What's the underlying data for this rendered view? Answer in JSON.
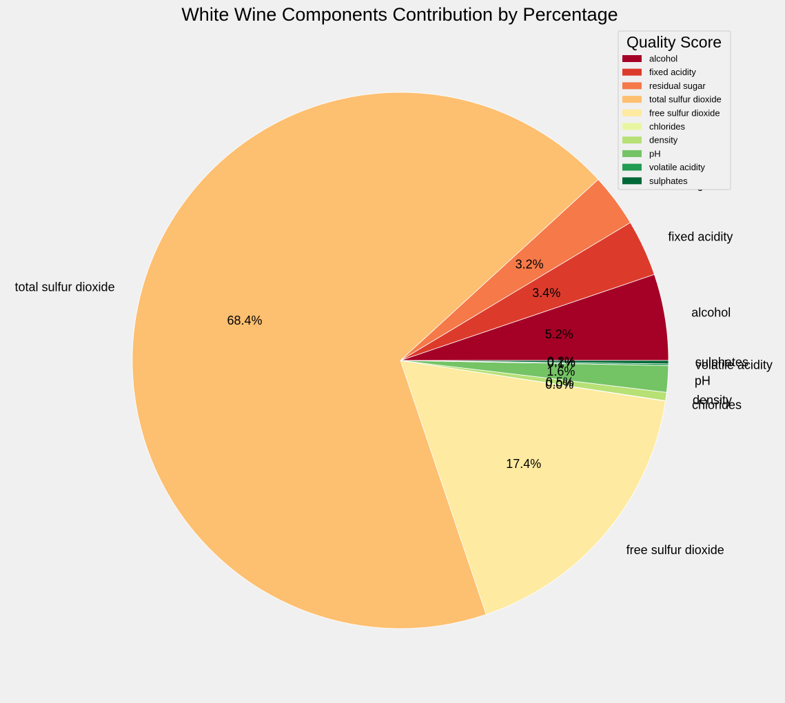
{
  "chart_data": {
    "type": "pie",
    "title": "White Wine Components Contribution by Percentage",
    "legend_title": "Quality Score",
    "legend_position": "top-right",
    "start_angle_deg": 0,
    "direction": "counterclockwise",
    "slices": [
      {
        "label": "alcohol",
        "value": 5.2,
        "pct_label": "5.2%",
        "color": "#a50026"
      },
      {
        "label": "fixed acidity",
        "value": 3.4,
        "pct_label": "3.4%",
        "color": "#dc3b2c"
      },
      {
        "label": "residual sugar",
        "value": 3.2,
        "pct_label": "3.2%",
        "color": "#f57949"
      },
      {
        "label": "total sulfur dioxide",
        "value": 68.4,
        "pct_label": "68.4%",
        "color": "#fdbf70"
      },
      {
        "label": "free sulfur dioxide",
        "value": 17.4,
        "pct_label": "17.4%",
        "color": "#feeaa0"
      },
      {
        "label": "chlorides",
        "value": 0.02,
        "pct_label": "0.0%",
        "color": "#e9f6a1"
      },
      {
        "label": "density",
        "value": 0.5,
        "pct_label": "0.5%",
        "color": "#b7e075"
      },
      {
        "label": "pH",
        "value": 1.6,
        "pct_label": "1.6%",
        "color": "#74c365"
      },
      {
        "label": "volatile acidity",
        "value": 0.1,
        "pct_label": "0.1%",
        "color": "#229c52"
      },
      {
        "label": "sulphates",
        "value": 0.2,
        "pct_label": "0.2%",
        "color": "#006837"
      }
    ]
  }
}
